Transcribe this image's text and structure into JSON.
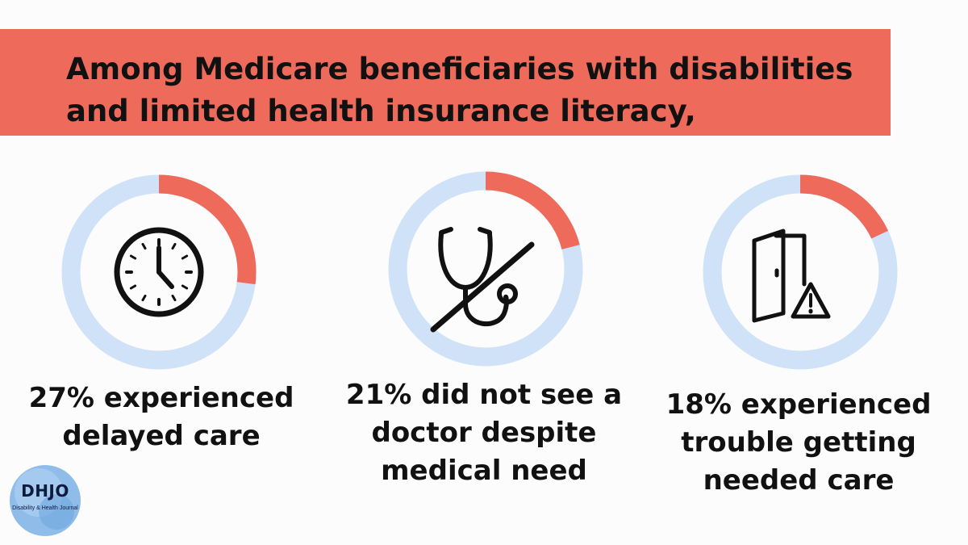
{
  "header": {
    "line1": "Among Medicare beneficiaries with disabilities",
    "line2": "and limited health insurance literacy,"
  },
  "chart_data": [
    {
      "type": "pie",
      "title": "27% experienced delayed care",
      "value_percent": 27,
      "remainder_percent": 73,
      "caption_lines": [
        "27% experienced",
        "delayed care"
      ],
      "icon": "clock-icon"
    },
    {
      "type": "pie",
      "title": "21% did not see a doctor despite medical need",
      "value_percent": 21,
      "remainder_percent": 79,
      "caption_lines": [
        "21% did not see a",
        "doctor despite",
        "medical need"
      ],
      "icon": "crossed-stethoscope-icon"
    },
    {
      "type": "pie",
      "title": "18% experienced trouble getting needed care",
      "value_percent": 18,
      "remainder_percent": 82,
      "caption_lines": [
        "18% experienced",
        "trouble getting",
        "needed care"
      ],
      "icon": "door-warning-icon"
    }
  ],
  "colors": {
    "highlight": "#ee6b5c",
    "track": "#cfe2f7",
    "banner": "#ee6b5c",
    "text": "#111111"
  },
  "logo": {
    "title": "DHJO",
    "subtitle": "Disability & Health Journal"
  }
}
